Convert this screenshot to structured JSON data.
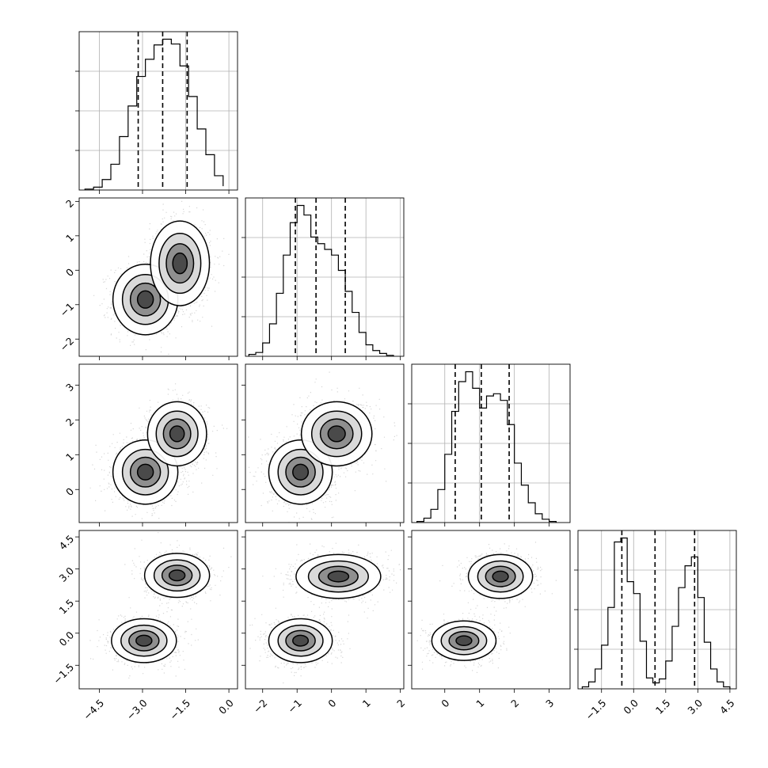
{
  "chart_data": {
    "type": "corner",
    "n_params": 4,
    "ranges": [
      [
        -5.2,
        0.3
      ],
      [
        -2.5,
        2.1
      ],
      [
        -0.95,
        3.6
      ],
      [
        -2.6,
        4.8
      ]
    ],
    "ticks": [
      [
        "−4.5",
        "−3.0",
        "−1.5",
        "0.0"
      ],
      [
        "−2",
        "−1",
        "0",
        "1",
        "2"
      ],
      [
        "0",
        "1",
        "2",
        "3"
      ],
      [
        "−1.5",
        "0.0",
        "1.5",
        "3.0",
        "4.5"
      ]
    ],
    "tick_values": [
      [
        -4.5,
        -3.0,
        -1.5,
        0.0
      ],
      [
        -2,
        -1,
        0,
        1,
        2
      ],
      [
        0,
        1,
        2,
        3
      ],
      [
        -1.5,
        0.0,
        1.5,
        3.0,
        4.5
      ]
    ],
    "histograms": [
      {
        "param": 0,
        "bin_edges": [
          -5.0,
          -4.7,
          -4.4,
          -4.1,
          -3.8,
          -3.5,
          -3.2,
          -2.9,
          -2.6,
          -2.3,
          -2.0,
          -1.7,
          -1.4,
          -1.1,
          -0.8,
          -0.5,
          -0.2
        ],
        "counts": [
          1,
          3,
          11,
          27,
          56,
          88,
          119,
          137,
          152,
          158,
          153,
          130,
          98,
          64,
          37,
          15,
          4
        ],
        "quantiles": [
          -3.15,
          -2.3,
          -1.45
        ]
      },
      {
        "param": 1,
        "bin_edges": [
          -2.4,
          -2.2,
          -2.0,
          -1.8,
          -1.6,
          -1.4,
          -1.2,
          -1.0,
          -0.8,
          -0.6,
          -0.4,
          -0.2,
          0.0,
          0.2,
          0.4,
          0.6,
          0.8,
          1.0,
          1.2,
          1.4,
          1.6,
          1.8
        ],
        "counts": [
          2,
          4,
          14,
          34,
          66,
          106,
          140,
          158,
          148,
          125,
          118,
          112,
          106,
          90,
          68,
          46,
          25,
          12,
          6,
          3,
          1
        ],
        "quantiles": [
          -1.05,
          -0.45,
          0.4
        ]
      },
      {
        "param": 2,
        "bin_edges": [
          -0.8,
          -0.6,
          -0.4,
          -0.2,
          0.0,
          0.2,
          0.4,
          0.6,
          0.8,
          1.0,
          1.2,
          1.4,
          1.6,
          1.8,
          2.0,
          2.2,
          2.4,
          2.6,
          2.8,
          3.0,
          3.2
        ],
        "counts": [
          1,
          4,
          12,
          30,
          62,
          101,
          128,
          137,
          122,
          104,
          115,
          117,
          111,
          89,
          54,
          34,
          18,
          8,
          3,
          1
        ],
        "quantiles": [
          0.3,
          1.05,
          1.85
        ]
      },
      {
        "param": 3,
        "bin_edges": [
          -2.4,
          -2.1,
          -1.8,
          -1.5,
          -1.2,
          -0.9,
          -0.6,
          -0.3,
          0.0,
          0.3,
          0.6,
          0.9,
          1.2,
          1.5,
          1.8,
          2.1,
          2.4,
          2.7,
          3.0,
          3.3,
          3.6,
          3.9,
          4.2,
          4.5
        ],
        "counts": [
          2,
          7,
          20,
          44,
          82,
          148,
          152,
          108,
          96,
          48,
          11,
          6,
          10,
          28,
          63,
          102,
          124,
          133,
          92,
          47,
          20,
          7,
          2
        ],
        "quantiles": [
          -0.55,
          1.0,
          2.85
        ]
      }
    ],
    "scatter_pairs": [
      {
        "x_param": 0,
        "y_param": 1,
        "modes": [
          {
            "cx": -2.9,
            "cy": -0.85,
            "sx": 0.55,
            "sy": 0.5,
            "w": 0.45
          },
          {
            "cx": -1.7,
            "cy": 0.2,
            "sx": 0.5,
            "sy": 0.6,
            "w": 0.55
          }
        ]
      },
      {
        "x_param": 0,
        "y_param": 2,
        "modes": [
          {
            "cx": -2.9,
            "cy": 0.5,
            "sx": 0.55,
            "sy": 0.45,
            "w": 0.5
          },
          {
            "cx": -1.8,
            "cy": 1.6,
            "sx": 0.5,
            "sy": 0.45,
            "w": 0.5
          }
        ]
      },
      {
        "x_param": 1,
        "y_param": 2,
        "modes": [
          {
            "cx": -0.9,
            "cy": 0.5,
            "sx": 0.45,
            "sy": 0.45,
            "w": 0.5
          },
          {
            "cx": 0.15,
            "cy": 1.6,
            "sx": 0.5,
            "sy": 0.45,
            "w": 0.5
          }
        ]
      },
      {
        "x_param": 0,
        "y_param": 3,
        "modes": [
          {
            "cx": -2.95,
            "cy": -0.35,
            "sx": 0.55,
            "sy": 0.5,
            "w": 0.5
          },
          {
            "cx": -1.8,
            "cy": 2.7,
            "sx": 0.55,
            "sy": 0.5,
            "w": 0.5
          }
        ]
      },
      {
        "x_param": 1,
        "y_param": 3,
        "modes": [
          {
            "cx": -0.9,
            "cy": -0.35,
            "sx": 0.45,
            "sy": 0.5,
            "w": 0.5
          },
          {
            "cx": 0.2,
            "cy": 2.65,
            "sx": 0.6,
            "sy": 0.5,
            "w": 0.5
          }
        ]
      },
      {
        "x_param": 2,
        "y_param": 3,
        "modes": [
          {
            "cx": 0.55,
            "cy": -0.35,
            "sx": 0.45,
            "sy": 0.45,
            "w": 0.5
          },
          {
            "cx": 1.6,
            "cy": 2.65,
            "sx": 0.45,
            "sy": 0.5,
            "w": 0.5
          }
        ]
      }
    ]
  }
}
